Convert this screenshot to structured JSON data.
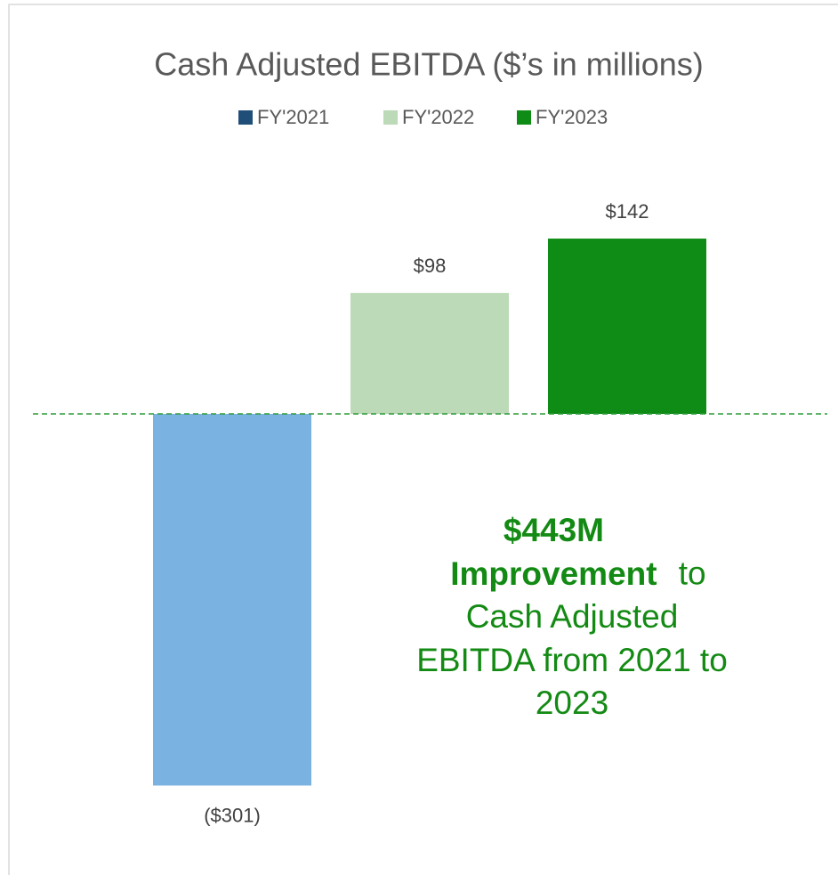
{
  "chart_data": {
    "type": "bar",
    "title": "Cash Adjusted EBITDA ($’s in millions)",
    "series": [
      {
        "name": "FY'2021",
        "color": "#7ab3e2",
        "legend_color": "#1f4e79",
        "values": [
          -301
        ],
        "value_labels": [
          "($301)"
        ]
      },
      {
        "name": "FY'2022",
        "color": "#bcdab7",
        "values": [
          98
        ],
        "value_labels": [
          "$98"
        ]
      },
      {
        "name": "FY'2023",
        "color": "#0e8c16",
        "values": [
          142
        ],
        "value_labels": [
          "$142"
        ]
      }
    ],
    "annotation": {
      "highlight": "$443M Improvement",
      "text": "to Cash Adjusted EBITDA from 2021 to 2023"
    }
  }
}
